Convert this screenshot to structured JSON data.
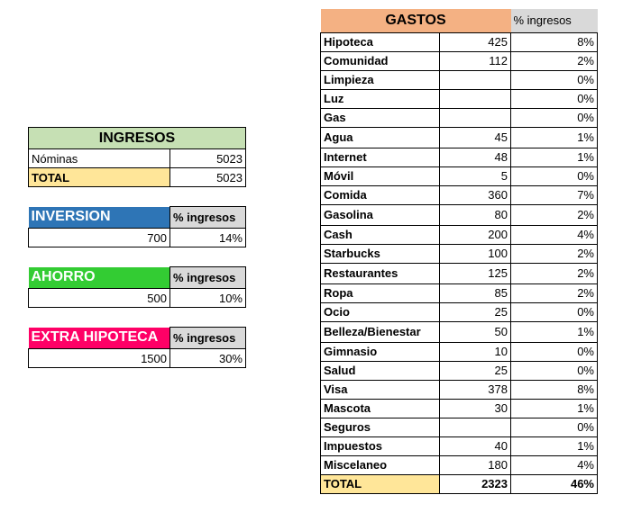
{
  "ingresos": {
    "title": "INGRESOS",
    "rows": [
      {
        "label": "Nóminas",
        "value": "5023"
      }
    ],
    "total_label": "TOTAL",
    "total_value": "5023"
  },
  "inversion": {
    "title": "INVERSION",
    "pct_label": "% ingresos",
    "value": "700",
    "pct": "14%"
  },
  "ahorro": {
    "title": "AHORRO",
    "pct_label": "% ingresos",
    "value": "500",
    "pct": "10%"
  },
  "extra": {
    "title": "EXTRA HIPOTECA",
    "pct_label": "% ingresos",
    "value": "1500",
    "pct": "30%"
  },
  "gastos": {
    "title": "GASTOS",
    "pct_label": "% ingresos",
    "rows": [
      {
        "label": "Hipoteca",
        "value": "425",
        "pct": "8%"
      },
      {
        "label": "Comunidad",
        "value": "112",
        "pct": "2%"
      },
      {
        "label": "Limpieza",
        "value": "",
        "pct": "0%"
      },
      {
        "label": "Luz",
        "value": "",
        "pct": "0%"
      },
      {
        "label": "Gas",
        "value": "",
        "pct": "0%"
      },
      {
        "label": "Agua",
        "value": "45",
        "pct": "1%"
      },
      {
        "label": "Internet",
        "value": "48",
        "pct": "1%"
      },
      {
        "label": "Móvil",
        "value": "5",
        "pct": "0%"
      },
      {
        "label": "Comida",
        "value": "360",
        "pct": "7%"
      },
      {
        "label": "Gasolina",
        "value": "80",
        "pct": "2%"
      },
      {
        "label": "Cash",
        "value": "200",
        "pct": "4%"
      },
      {
        "label": "Starbucks",
        "value": "100",
        "pct": "2%"
      },
      {
        "label": "Restaurantes",
        "value": "125",
        "pct": "2%"
      },
      {
        "label": "Ropa",
        "value": "85",
        "pct": "2%"
      },
      {
        "label": "Ocio",
        "value": "25",
        "pct": "0%"
      },
      {
        "label": "Belleza/Bienestar",
        "value": "50",
        "pct": "1%"
      },
      {
        "label": "Gimnasio",
        "value": "10",
        "pct": "0%"
      },
      {
        "label": "Salud",
        "value": "25",
        "pct": "0%"
      },
      {
        "label": "Visa",
        "value": "378",
        "pct": "8%"
      },
      {
        "label": "Mascota",
        "value": "30",
        "pct": "1%"
      },
      {
        "label": "Seguros",
        "value": "",
        "pct": "0%"
      },
      {
        "label": "Impuestos",
        "value": "40",
        "pct": "1%"
      },
      {
        "label": "Miscelaneo",
        "value": "180",
        "pct": "4%"
      }
    ],
    "total_label": "TOTAL",
    "total_value": "2323",
    "total_pct": "46%"
  },
  "colors": {
    "gastos_header": "#f4b183",
    "ingresos_header": "#c6e0b4",
    "total": "#ffe699",
    "inversion": "#2e75b6",
    "ahorro": "#33cc33",
    "extra": "#ff0066",
    "pct_header": "#d9d9d9"
  }
}
